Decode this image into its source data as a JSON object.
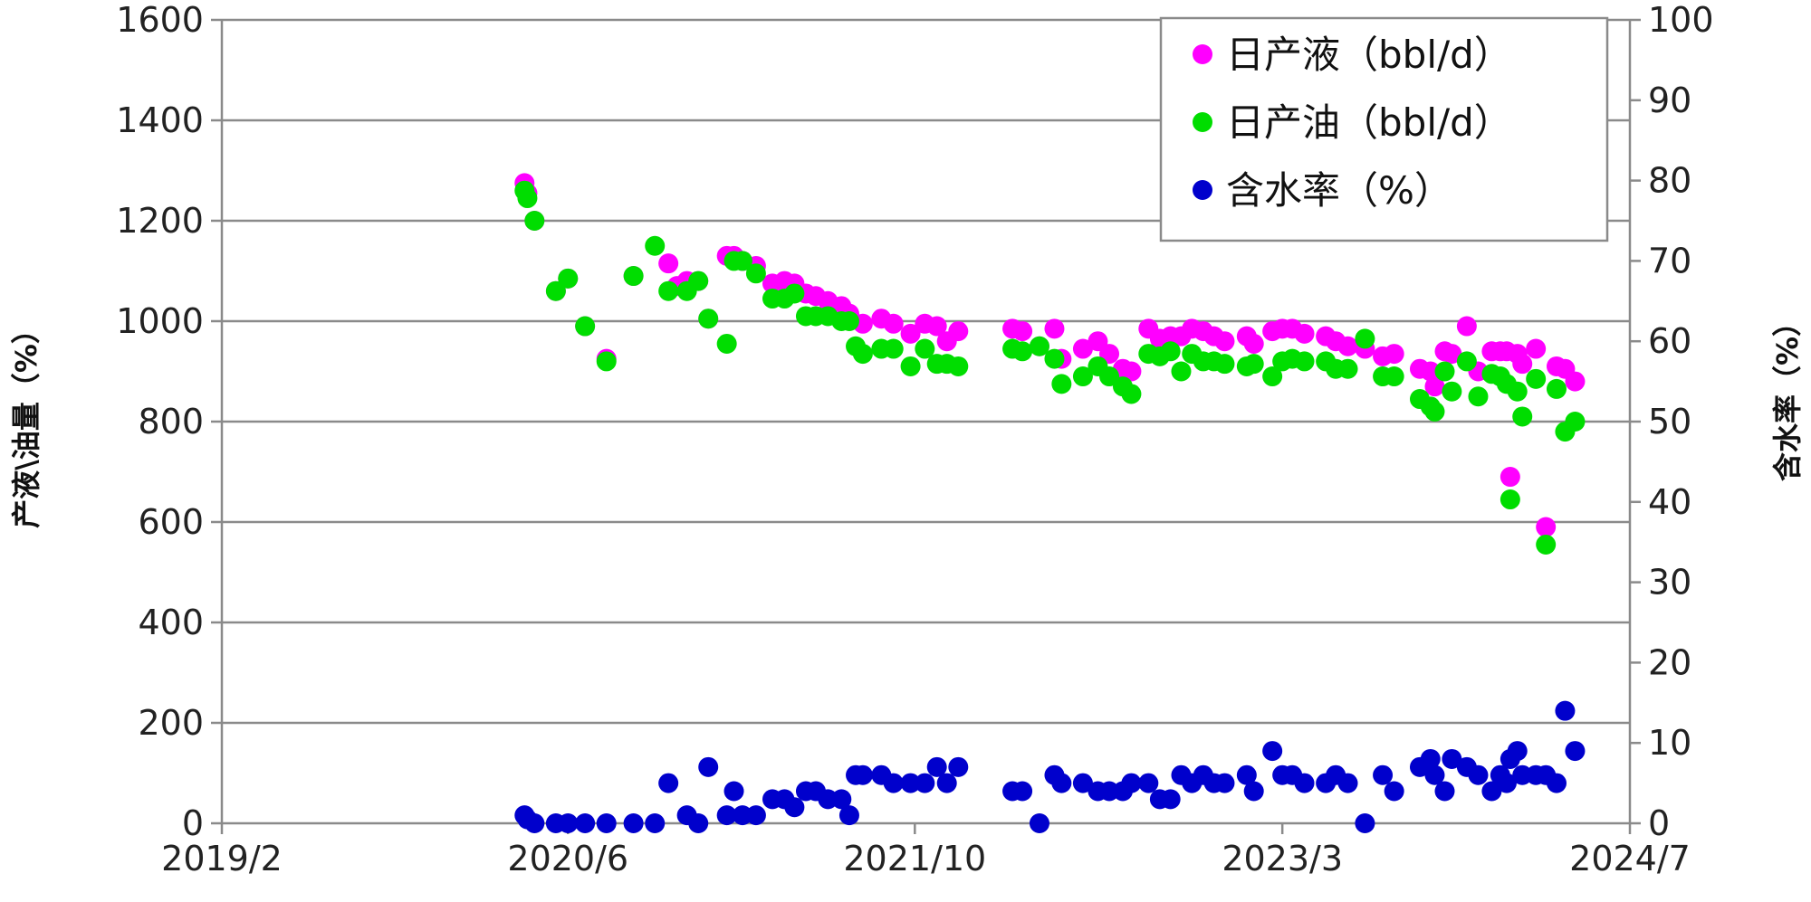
{
  "chart_data": {
    "type": "scatter",
    "title": "",
    "xlabel": "",
    "ylabel": "产液\\油量（%）",
    "y2label": "含水率（%）",
    "xlim": [
      "2019-02-01",
      "2024-07-01"
    ],
    "ylim": [
      0,
      1600
    ],
    "y2lim": [
      0,
      100
    ],
    "x_tick_labels": [
      "2019/2",
      "2020/6",
      "2021/10",
      "2023/3",
      "2024/7"
    ],
    "x_ticks": [
      "2019-02-01",
      "2020-06-01",
      "2021-10-01",
      "2023-03-01",
      "2024-07-01"
    ],
    "y_tick_labels": [
      "0",
      "200",
      "400",
      "600",
      "800",
      "1000",
      "1200",
      "1400",
      "1600"
    ],
    "y_ticks": [
      0,
      200,
      400,
      600,
      800,
      1000,
      1200,
      1400,
      1600
    ],
    "y2_tick_labels": [
      "0",
      "10",
      "20",
      "30",
      "40",
      "50",
      "60",
      "70",
      "80",
      "90",
      "100"
    ],
    "y2_ticks": [
      0,
      10,
      20,
      30,
      40,
      50,
      60,
      70,
      80,
      90,
      100
    ],
    "grid": true,
    "legend_position": "top-right",
    "series": [
      {
        "name": "日产液（bbl/d）",
        "axis": "left",
        "color": "#ff00ff",
        "points": [
          [
            "2020-04-01",
            1275
          ],
          [
            "2020-04-05",
            1255
          ],
          [
            "2020-04-15",
            1200
          ],
          [
            "2020-05-15",
            1060
          ],
          [
            "2020-06-01",
            1085
          ],
          [
            "2020-06-25",
            990
          ],
          [
            "2020-07-25",
            925
          ],
          [
            "2020-09-01",
            1090
          ],
          [
            "2020-10-20",
            1115
          ],
          [
            "2020-11-01",
            1070
          ],
          [
            "2020-11-15",
            1080
          ],
          [
            "2020-12-01",
            1080
          ],
          [
            "2020-12-15",
            1005
          ],
          [
            "2021-01-10",
            1130
          ],
          [
            "2021-01-20",
            1130
          ],
          [
            "2021-02-01",
            1120
          ],
          [
            "2021-02-20",
            1110
          ],
          [
            "2021-03-15",
            1075
          ],
          [
            "2021-04-01",
            1080
          ],
          [
            "2021-04-15",
            1075
          ],
          [
            "2021-05-01",
            1055
          ],
          [
            "2021-05-15",
            1050
          ],
          [
            "2021-06-01",
            1040
          ],
          [
            "2021-06-20",
            1030
          ],
          [
            "2021-07-01",
            1015
          ],
          [
            "2021-07-20",
            995
          ],
          [
            "2021-08-15",
            1005
          ],
          [
            "2021-09-01",
            995
          ],
          [
            "2021-09-25",
            975
          ],
          [
            "2021-10-15",
            995
          ],
          [
            "2021-11-01",
            990
          ],
          [
            "2021-11-15",
            960
          ],
          [
            "2021-12-01",
            980
          ],
          [
            "2022-02-15",
            985
          ],
          [
            "2022-03-01",
            980
          ],
          [
            "2022-03-25",
            950
          ],
          [
            "2022-04-15",
            985
          ],
          [
            "2022-04-25",
            925
          ],
          [
            "2022-05-25",
            945
          ],
          [
            "2022-06-15",
            960
          ],
          [
            "2022-07-01",
            935
          ],
          [
            "2022-07-20",
            905
          ],
          [
            "2022-08-01",
            900
          ],
          [
            "2022-08-25",
            985
          ],
          [
            "2022-09-10",
            965
          ],
          [
            "2022-09-25",
            970
          ],
          [
            "2022-10-10",
            970
          ],
          [
            "2022-10-25",
            985
          ],
          [
            "2022-11-10",
            980
          ],
          [
            "2022-11-25",
            970
          ],
          [
            "2022-12-10",
            960
          ],
          [
            "2023-01-10",
            970
          ],
          [
            "2023-01-20",
            955
          ],
          [
            "2023-02-15",
            980
          ],
          [
            "2023-03-01",
            985
          ],
          [
            "2023-03-15",
            985
          ],
          [
            "2023-04-01",
            975
          ],
          [
            "2023-05-01",
            970
          ],
          [
            "2023-05-15",
            960
          ],
          [
            "2023-06-01",
            950
          ],
          [
            "2023-06-25",
            945
          ],
          [
            "2023-07-20",
            930
          ],
          [
            "2023-08-05",
            935
          ],
          [
            "2023-09-10",
            905
          ],
          [
            "2023-09-25",
            900
          ],
          [
            "2023-10-01",
            870
          ],
          [
            "2023-10-15",
            940
          ],
          [
            "2023-10-25",
            935
          ],
          [
            "2023-11-15",
            990
          ],
          [
            "2023-12-01",
            900
          ],
          [
            "2023-12-20",
            940
          ],
          [
            "2024-01-01",
            940
          ],
          [
            "2024-01-10",
            940
          ],
          [
            "2024-01-15",
            690
          ],
          [
            "2024-01-25",
            935
          ],
          [
            "2024-02-01",
            915
          ],
          [
            "2024-02-20",
            945
          ],
          [
            "2024-03-05",
            590
          ],
          [
            "2024-03-20",
            910
          ],
          [
            "2024-04-01",
            905
          ],
          [
            "2024-04-15",
            880
          ]
        ]
      },
      {
        "name": "日产油（bbl/d）",
        "axis": "left",
        "color": "#00dd00",
        "points": [
          [
            "2020-04-01",
            1260
          ],
          [
            "2020-04-05",
            1245
          ],
          [
            "2020-04-15",
            1200
          ],
          [
            "2020-05-15",
            1060
          ],
          [
            "2020-06-01",
            1085
          ],
          [
            "2020-06-25",
            990
          ],
          [
            "2020-07-25",
            920
          ],
          [
            "2020-09-01",
            1090
          ],
          [
            "2020-10-01",
            1150
          ],
          [
            "2020-10-20",
            1060
          ],
          [
            "2020-11-15",
            1060
          ],
          [
            "2020-12-01",
            1080
          ],
          [
            "2020-12-15",
            1005
          ],
          [
            "2021-01-10",
            955
          ],
          [
            "2021-01-20",
            1120
          ],
          [
            "2021-02-01",
            1120
          ],
          [
            "2021-02-20",
            1095
          ],
          [
            "2021-03-15",
            1045
          ],
          [
            "2021-04-01",
            1045
          ],
          [
            "2021-04-15",
            1055
          ],
          [
            "2021-05-01",
            1010
          ],
          [
            "2021-05-15",
            1010
          ],
          [
            "2021-06-01",
            1010
          ],
          [
            "2021-06-20",
            1000
          ],
          [
            "2021-07-01",
            1000
          ],
          [
            "2021-07-10",
            950
          ],
          [
            "2021-07-20",
            935
          ],
          [
            "2021-08-15",
            945
          ],
          [
            "2021-09-01",
            945
          ],
          [
            "2021-09-25",
            910
          ],
          [
            "2021-10-15",
            945
          ],
          [
            "2021-11-01",
            915
          ],
          [
            "2021-11-15",
            915
          ],
          [
            "2021-12-01",
            910
          ],
          [
            "2022-02-15",
            945
          ],
          [
            "2022-03-01",
            940
          ],
          [
            "2022-03-25",
            950
          ],
          [
            "2022-04-15",
            925
          ],
          [
            "2022-04-25",
            875
          ],
          [
            "2022-05-25",
            890
          ],
          [
            "2022-06-15",
            910
          ],
          [
            "2022-07-01",
            890
          ],
          [
            "2022-07-20",
            870
          ],
          [
            "2022-08-01",
            855
          ],
          [
            "2022-08-25",
            935
          ],
          [
            "2022-09-10",
            930
          ],
          [
            "2022-09-25",
            940
          ],
          [
            "2022-10-10",
            900
          ],
          [
            "2022-10-25",
            935
          ],
          [
            "2022-11-10",
            920
          ],
          [
            "2022-11-25",
            920
          ],
          [
            "2022-12-10",
            915
          ],
          [
            "2023-01-10",
            910
          ],
          [
            "2023-01-20",
            915
          ],
          [
            "2023-02-15",
            890
          ],
          [
            "2023-03-01",
            920
          ],
          [
            "2023-03-15",
            925
          ],
          [
            "2023-04-01",
            920
          ],
          [
            "2023-05-01",
            920
          ],
          [
            "2023-05-15",
            905
          ],
          [
            "2023-06-01",
            905
          ],
          [
            "2023-06-25",
            965
          ],
          [
            "2023-07-20",
            890
          ],
          [
            "2023-08-05",
            890
          ],
          [
            "2023-09-10",
            845
          ],
          [
            "2023-09-25",
            830
          ],
          [
            "2023-10-01",
            820
          ],
          [
            "2023-10-15",
            900
          ],
          [
            "2023-10-25",
            860
          ],
          [
            "2023-11-15",
            920
          ],
          [
            "2023-12-01",
            850
          ],
          [
            "2023-12-20",
            895
          ],
          [
            "2024-01-01",
            890
          ],
          [
            "2024-01-10",
            875
          ],
          [
            "2024-01-15",
            645
          ],
          [
            "2024-01-25",
            860
          ],
          [
            "2024-02-01",
            810
          ],
          [
            "2024-02-20",
            885
          ],
          [
            "2024-03-05",
            555
          ],
          [
            "2024-03-20",
            865
          ],
          [
            "2024-04-01",
            780
          ],
          [
            "2024-04-15",
            800
          ]
        ]
      },
      {
        "name": "含水率（%）",
        "axis": "right",
        "color": "#0000cc",
        "points": [
          [
            "2020-04-01",
            1
          ],
          [
            "2020-04-05",
            0.5
          ],
          [
            "2020-04-15",
            0
          ],
          [
            "2020-05-15",
            0
          ],
          [
            "2020-06-01",
            0
          ],
          [
            "2020-06-25",
            0
          ],
          [
            "2020-07-25",
            0
          ],
          [
            "2020-09-01",
            0
          ],
          [
            "2020-10-01",
            0
          ],
          [
            "2020-10-20",
            5
          ],
          [
            "2020-11-15",
            1
          ],
          [
            "2020-12-01",
            0
          ],
          [
            "2020-12-15",
            7
          ],
          [
            "2021-01-10",
            1
          ],
          [
            "2021-01-20",
            4
          ],
          [
            "2021-02-01",
            1
          ],
          [
            "2021-02-20",
            1
          ],
          [
            "2021-03-15",
            3
          ],
          [
            "2021-04-01",
            3
          ],
          [
            "2021-04-15",
            2
          ],
          [
            "2021-05-01",
            4
          ],
          [
            "2021-05-15",
            4
          ],
          [
            "2021-06-01",
            3
          ],
          [
            "2021-06-20",
            3
          ],
          [
            "2021-07-01",
            1
          ],
          [
            "2021-07-10",
            6
          ],
          [
            "2021-07-20",
            6
          ],
          [
            "2021-08-15",
            6
          ],
          [
            "2021-09-01",
            5
          ],
          [
            "2021-09-25",
            5
          ],
          [
            "2021-10-15",
            5
          ],
          [
            "2021-11-01",
            7
          ],
          [
            "2021-11-15",
            5
          ],
          [
            "2021-12-01",
            7
          ],
          [
            "2022-02-15",
            4
          ],
          [
            "2022-03-01",
            4
          ],
          [
            "2022-03-25",
            0
          ],
          [
            "2022-04-15",
            6
          ],
          [
            "2022-04-25",
            5
          ],
          [
            "2022-05-25",
            5
          ],
          [
            "2022-06-15",
            4
          ],
          [
            "2022-07-01",
            4
          ],
          [
            "2022-07-20",
            4
          ],
          [
            "2022-08-01",
            5
          ],
          [
            "2022-08-25",
            5
          ],
          [
            "2022-09-10",
            3
          ],
          [
            "2022-09-25",
            3
          ],
          [
            "2022-10-10",
            6
          ],
          [
            "2022-10-25",
            5
          ],
          [
            "2022-11-10",
            6
          ],
          [
            "2022-11-25",
            5
          ],
          [
            "2022-12-10",
            5
          ],
          [
            "2023-01-10",
            6
          ],
          [
            "2023-01-20",
            4
          ],
          [
            "2023-02-15",
            9
          ],
          [
            "2023-03-01",
            6
          ],
          [
            "2023-03-15",
            6
          ],
          [
            "2023-04-01",
            5
          ],
          [
            "2023-05-01",
            5
          ],
          [
            "2023-05-15",
            6
          ],
          [
            "2023-06-01",
            5
          ],
          [
            "2023-06-25",
            0
          ],
          [
            "2023-07-20",
            6
          ],
          [
            "2023-08-05",
            4
          ],
          [
            "2023-09-10",
            7
          ],
          [
            "2023-09-25",
            8
          ],
          [
            "2023-10-01",
            6
          ],
          [
            "2023-10-15",
            4
          ],
          [
            "2023-10-25",
            8
          ],
          [
            "2023-11-15",
            7
          ],
          [
            "2023-12-01",
            6
          ],
          [
            "2023-12-20",
            4
          ],
          [
            "2024-01-01",
            6
          ],
          [
            "2024-01-10",
            5
          ],
          [
            "2024-01-15",
            8
          ],
          [
            "2024-01-25",
            9
          ],
          [
            "2024-02-01",
            6
          ],
          [
            "2024-02-20",
            6
          ],
          [
            "2024-03-05",
            6
          ],
          [
            "2024-03-20",
            5
          ],
          [
            "2024-04-01",
            14
          ],
          [
            "2024-04-15",
            9
          ]
        ]
      }
    ]
  }
}
